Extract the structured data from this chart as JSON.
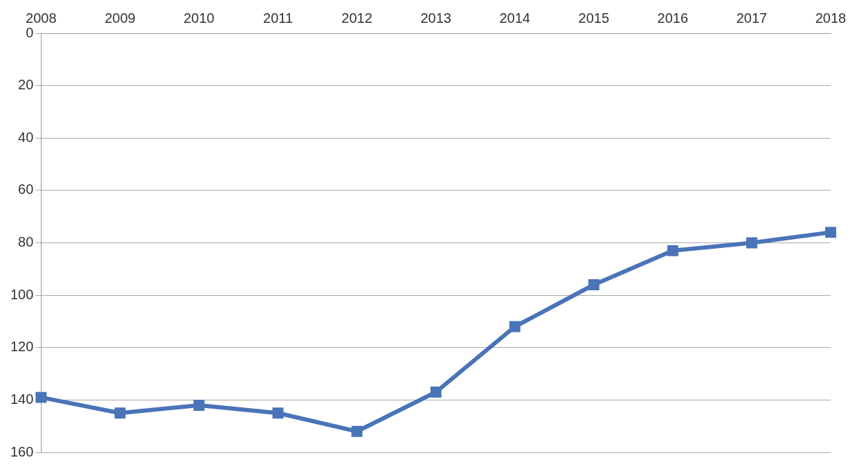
{
  "chart_data": {
    "type": "line",
    "categories": [
      "2008",
      "2009",
      "2010",
      "2011",
      "2012",
      "2013",
      "2014",
      "2015",
      "2016",
      "2017",
      "2018"
    ],
    "series": [
      {
        "color": "#4a74b8",
        "values": [
          139,
          145,
          142,
          145,
          152,
          137,
          112,
          96,
          83,
          80,
          76
        ]
      }
    ],
    "ylim": [
      160,
      0
    ],
    "yticks": [
      0,
      20,
      40,
      60,
      80,
      100,
      120,
      140,
      160
    ],
    "grid": "y",
    "marker": "square",
    "line_style": "solid",
    "legend": false
  }
}
